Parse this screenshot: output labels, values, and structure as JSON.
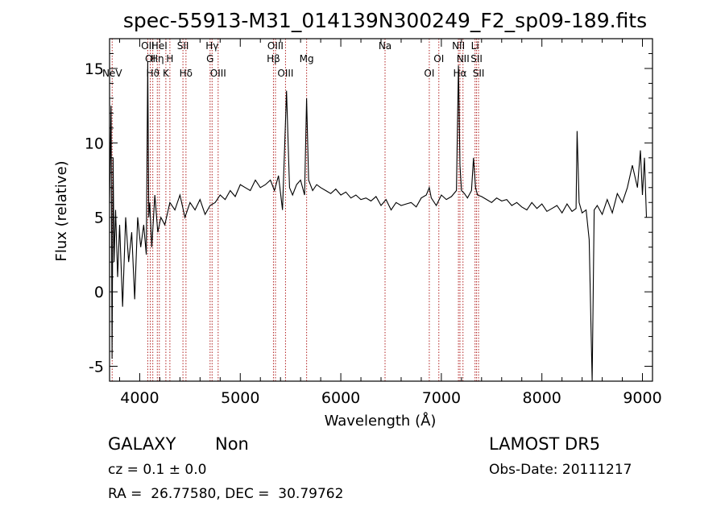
{
  "chart_data": {
    "type": "line",
    "title": "spec-55913-M31_014139N300249_F2_sp09-189.fits",
    "xlabel": "Wavelength (Å)",
    "ylabel": "Flux (relative)",
    "xlim": [
      3700,
      9100
    ],
    "ylim": [
      -6,
      17
    ],
    "x_ticks": [
      4000,
      5000,
      6000,
      7000,
      8000,
      9000
    ],
    "y_ticks": [
      -5,
      0,
      5,
      10,
      15
    ],
    "grid": false,
    "line_color": "#000000",
    "marker_color": "#b22222",
    "series": [
      {
        "x": [
          3700,
          3715,
          3725,
          3735,
          3745,
          3760,
          3780,
          3800,
          3830,
          3860,
          3890,
          3920,
          3950,
          3980,
          4010,
          4040,
          4065,
          4080,
          4090,
          4100,
          4120,
          4150,
          4180,
          4210,
          4250,
          4300,
          4350,
          4400,
          4450,
          4500,
          4550,
          4600,
          4650,
          4700,
          4750,
          4800,
          4850,
          4900,
          4950,
          5000,
          5050,
          5100,
          5150,
          5200,
          5250,
          5300,
          5340,
          5380,
          5420,
          5460,
          5490,
          5520,
          5560,
          5600,
          5640,
          5660,
          5680,
          5720,
          5760,
          5800,
          5850,
          5900,
          5950,
          6000,
          6050,
          6100,
          6150,
          6200,
          6250,
          6300,
          6350,
          6400,
          6450,
          6500,
          6550,
          6600,
          6650,
          6700,
          6750,
          6800,
          6850,
          6880,
          6900,
          6950,
          7000,
          7050,
          7100,
          7150,
          7170,
          7185,
          7200,
          7230,
          7260,
          7300,
          7320,
          7340,
          7360,
          7400,
          7450,
          7500,
          7550,
          7600,
          7650,
          7700,
          7750,
          7800,
          7850,
          7900,
          7950,
          8000,
          8050,
          8100,
          8150,
          8200,
          8250,
          8300,
          8340,
          8350,
          8370,
          8400,
          8440,
          8470,
          8490,
          8500,
          8520,
          8550,
          8600,
          8650,
          8700,
          8750,
          8800,
          8850,
          8900,
          8950,
          8980,
          9000,
          9020,
          9040
        ],
        "y": [
          6,
          12.5,
          -4.5,
          9,
          2,
          5.5,
          1,
          4.5,
          -1,
          5,
          2,
          4,
          -0.5,
          5,
          3,
          4.5,
          2.5,
          15.5,
          5,
          6,
          3,
          6.5,
          4,
          5,
          4.5,
          6,
          5.5,
          6.5,
          5,
          6,
          5.5,
          6.2,
          5.2,
          5.8,
          6,
          6.5,
          6.2,
          6.8,
          6.4,
          7.2,
          7,
          6.8,
          7.5,
          7,
          7.2,
          7.5,
          6.8,
          7.8,
          5.5,
          13.5,
          7,
          6.5,
          7.2,
          7.5,
          6.5,
          13,
          7.5,
          6.8,
          7.2,
          7,
          6.8,
          6.6,
          6.9,
          6.5,
          6.7,
          6.3,
          6.5,
          6.2,
          6.3,
          6.1,
          6.4,
          5.8,
          6.2,
          5.5,
          6,
          5.8,
          5.9,
          6,
          5.7,
          6.3,
          6.5,
          7,
          6.3,
          5.8,
          6.5,
          6.2,
          6.4,
          6.8,
          15.2,
          8.5,
          6.8,
          6.6,
          6.3,
          6.8,
          9,
          7,
          6.5,
          6.4,
          6.2,
          6,
          6.3,
          6.1,
          6.2,
          5.8,
          6,
          5.7,
          5.5,
          6,
          5.6,
          5.9,
          5.4,
          5.6,
          5.8,
          5.3,
          5.9,
          5.4,
          5.6,
          10.8,
          6,
          5.3,
          5.5,
          3.5,
          -3,
          -6,
          5.5,
          5.8,
          5.2,
          6.2,
          5.3,
          6.6,
          6,
          7,
          8.5,
          7,
          9.5,
          6.5,
          9,
          5
        ]
      }
    ],
    "lines": [
      {
        "label": "NeV",
        "x": 3726,
        "row": 3
      },
      {
        "label": "OII",
        "x": 4080,
        "row": 1
      },
      {
        "label": "OI",
        "x": 4105,
        "row": 2
      },
      {
        "label": "Hϑ",
        "x": 4130,
        "row": 3
      },
      {
        "label": "Hη",
        "x": 4175,
        "row": 2
      },
      {
        "label": "HeI",
        "x": 4195,
        "row": 1
      },
      {
        "label": "K",
        "x": 4260,
        "row": 3
      },
      {
        "label": "H",
        "x": 4300,
        "row": 2
      },
      {
        "label": "SII",
        "x": 4430,
        "row": 1
      },
      {
        "label": "Hδ",
        "x": 4460,
        "row": 3
      },
      {
        "label": "Hγ",
        "x": 4720,
        "row": 1
      },
      {
        "label": "G",
        "x": 4700,
        "row": 2
      },
      {
        "label": "OIII",
        "x": 4780,
        "row": 3
      },
      {
        "label": "OIII",
        "x": 5350,
        "row": 1
      },
      {
        "label": "Hβ",
        "x": 5330,
        "row": 2
      },
      {
        "label": "OIII",
        "x": 5450,
        "row": 3
      },
      {
        "label": "Mg",
        "x": 5660,
        "row": 2
      },
      {
        "label": "Na",
        "x": 6440,
        "row": 1
      },
      {
        "label": "OI",
        "x": 6975,
        "row": 2
      },
      {
        "label": "OI",
        "x": 6880,
        "row": 3
      },
      {
        "label": "NII",
        "x": 7170,
        "row": 1
      },
      {
        "label": "NII",
        "x": 7215,
        "row": 2
      },
      {
        "label": "Hα",
        "x": 7185,
        "row": 3
      },
      {
        "label": "Li",
        "x": 7335,
        "row": 1
      },
      {
        "label": "SII",
        "x": 7350,
        "row": 2
      },
      {
        "label": "SII",
        "x": 7370,
        "row": 3
      }
    ]
  },
  "info": {
    "class": "GALAXY",
    "subclass": "Non",
    "survey": "LAMOST DR5",
    "cz": "cz = 0.1 ± 0.0",
    "obs_date": "Obs-Date: 20111217",
    "coords": "RA =  26.77580, DEC =  30.79762"
  }
}
